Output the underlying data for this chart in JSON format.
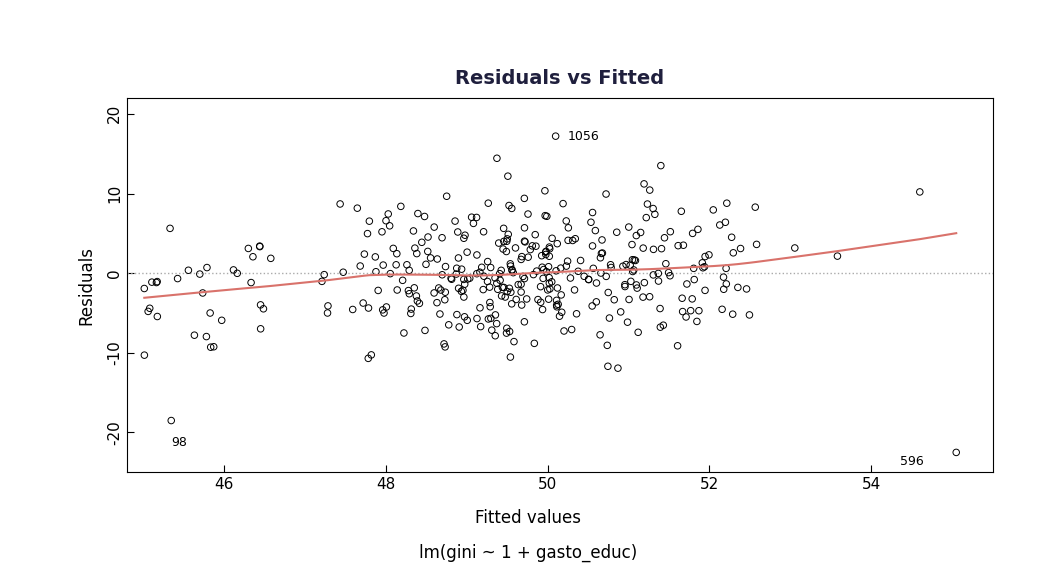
{
  "title": "Residuals vs Fitted",
  "xlabel": "Fitted values",
  "xlabel2": "lm(gini ~ 1 + gasto_educ)",
  "ylabel": "Residuals",
  "xlim": [
    44.8,
    55.5
  ],
  "ylim": [
    -25,
    22
  ],
  "yticks": [
    -20,
    -10,
    0,
    10,
    20
  ],
  "xticks": [
    46,
    48,
    50,
    52,
    54
  ],
  "background_color": "#ffffff",
  "scatter_color": "#000000",
  "smooth_color": "#d9726b",
  "hline_color": "#aaaaaa",
  "title_color": "#1f1f3d",
  "smooth_x": [
    44.8,
    45.5,
    46.0,
    47.0,
    48.0,
    49.0,
    49.5,
    50.0,
    50.5,
    51.0,
    51.5,
    52.0,
    53.0,
    54.0,
    55.0,
    55.5
  ],
  "smooth_y": [
    -3.5,
    -3.0,
    -2.5,
    -1.5,
    -0.3,
    0.8,
    1.0,
    0.8,
    0.5,
    0.3,
    0.4,
    0.5,
    0.8,
    1.2,
    1.5,
    1.6
  ],
  "seed": 42,
  "n_points": 380
}
